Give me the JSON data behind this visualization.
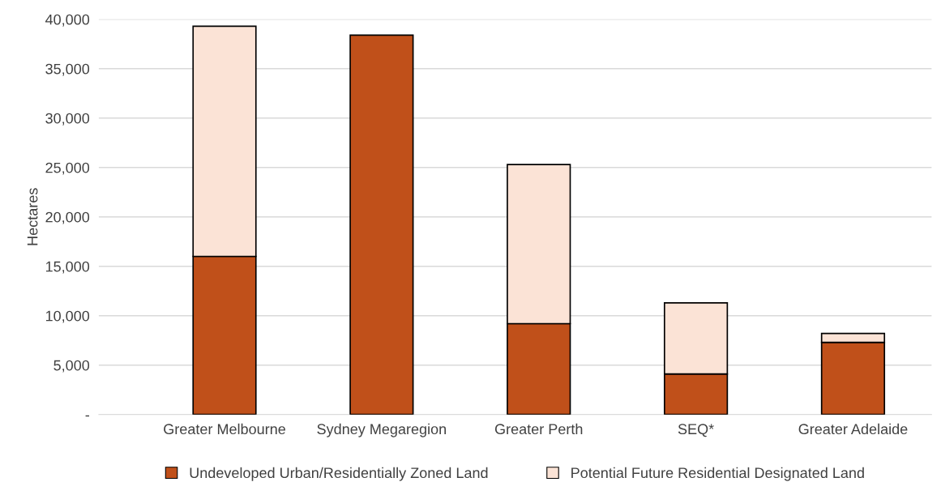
{
  "chart_data": {
    "type": "bar",
    "stacked": true,
    "ylabel": "Hectares",
    "categories": [
      "Greater Melbourne",
      "Sydney Megaregion",
      "Greater Perth",
      "SEQ*",
      "Greater Adelaide"
    ],
    "series": [
      {
        "name": "Undeveloped Urban/Residentially Zoned Land",
        "color": "#c0501a",
        "values": [
          16000,
          38400,
          9200,
          4100,
          7300
        ]
      },
      {
        "name": "Potential Future Residential Designated Land",
        "color": "#fbe3d6",
        "values": [
          23300,
          null,
          16100,
          7200,
          900
        ]
      }
    ],
    "ylim": [
      0,
      40000
    ],
    "yticks": [
      {
        "value": 0,
        "label": "-"
      },
      {
        "value": 5000,
        "label": "5,000"
      },
      {
        "value": 10000,
        "label": "10,000"
      },
      {
        "value": 15000,
        "label": "15,000"
      },
      {
        "value": 20000,
        "label": "20,000"
      },
      {
        "value": 25000,
        "label": "25,000"
      },
      {
        "value": 30000,
        "label": "30,000"
      },
      {
        "value": 35000,
        "label": "35,000"
      },
      {
        "value": 40000,
        "label": "40,000"
      }
    ],
    "grid": "y",
    "legend": "bottom"
  }
}
